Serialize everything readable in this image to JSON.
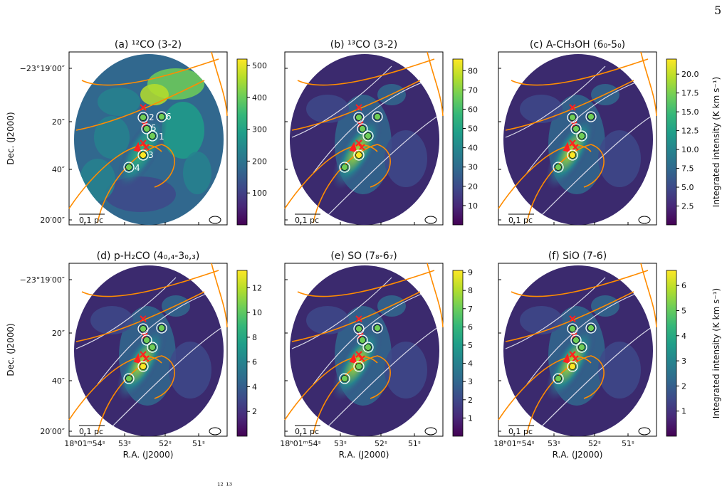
{
  "page_number": "5",
  "panels": [
    {
      "title": "(a) ¹²CO (3-2)",
      "cbar_ticks": [
        "500",
        "400",
        "300",
        "200",
        "100"
      ],
      "cbar_vals": [
        500,
        400,
        300,
        200,
        100
      ],
      "cmin": 0,
      "cmax": 520,
      "show_labels": true
    },
    {
      "title": "(b) ¹³CO (3-2)",
      "cbar_ticks": [
        "80",
        "70",
        "60",
        "50",
        "40",
        "30",
        "20",
        "10"
      ],
      "cbar_vals": [
        80,
        70,
        60,
        50,
        40,
        30,
        20,
        10
      ],
      "cmin": 0,
      "cmax": 86,
      "show_labels": false
    },
    {
      "title": "(c) A-CH₃OH (6₀-5₀)",
      "cbar_ticks": [
        "20.0",
        "17.5",
        "15.0",
        "12.5",
        "10.0",
        "7.5",
        "5.0",
        "2.5"
      ],
      "cbar_vals": [
        20,
        17.5,
        15,
        12.5,
        10,
        7.5,
        5,
        2.5
      ],
      "cmin": 0,
      "cmax": 22,
      "show_labels": false
    },
    {
      "title": "(d) p-H₂CO (4₀,₄-3₀,₃)",
      "cbar_ticks": [
        "12",
        "10",
        "8",
        "6",
        "4",
        "2"
      ],
      "cbar_vals": [
        12,
        10,
        8,
        6,
        4,
        2
      ],
      "cmin": 0,
      "cmax": 13.4,
      "show_labels": false
    },
    {
      "title": "(e) SO (7₈-6₇)",
      "cbar_ticks": [
        "9",
        "8",
        "7",
        "6",
        "5",
        "4",
        "3",
        "2",
        "1"
      ],
      "cbar_vals": [
        9,
        8,
        7,
        6,
        5,
        4,
        3,
        2,
        1
      ],
      "cmin": 0,
      "cmax": 9.1,
      "show_labels": false
    },
    {
      "title": "(f) SiO (7-6)",
      "cbar_ticks": [
        "6",
        "5",
        "4",
        "3",
        "2",
        "1"
      ],
      "cbar_vals": [
        6,
        5,
        4,
        3,
        2,
        1
      ],
      "cmin": 0,
      "cmax": 6.6,
      "show_labels": false
    }
  ],
  "axes": {
    "ylabel": "Dec. (J2000)",
    "xlabel": "R.A. (J2000)",
    "yticks": [
      "−23°19′00″",
      "20″",
      "40″",
      "20′00″"
    ],
    "xticks": [
      "18ʰ01ᵐ54ˢ",
      "53ˢ",
      "52ˢ",
      "51ˢ"
    ],
    "cbar_label": "Integrated intensity (K km s⁻¹)"
  },
  "scalebar_label": "0.1 pc",
  "source_labels": [
    "1",
    "2",
    "3",
    "4",
    "5",
    "6"
  ],
  "caption_fragment": "¹² ¹³",
  "colors": {
    "contour_orange": "#ff8c00",
    "contour_white": "#d8d8e8",
    "marker_red": "#ff2020",
    "viridis_low": "#440154",
    "viridis_high": "#fde725"
  }
}
